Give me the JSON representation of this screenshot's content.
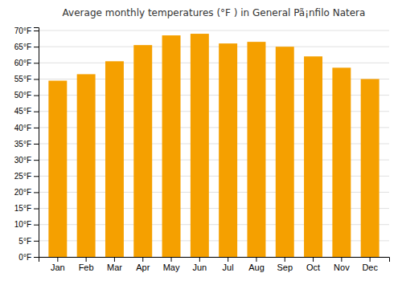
{
  "chart_data": {
    "type": "bar",
    "title": "Average monthly temperatures (°F ) in General Pã¡nfilo Natera",
    "categories": [
      "Jan",
      "Feb",
      "Mar",
      "Apr",
      "May",
      "Jun",
      "Jul",
      "Aug",
      "Sep",
      "Oct",
      "Nov",
      "Dec"
    ],
    "values": [
      54.5,
      56.5,
      60.5,
      65.5,
      68.5,
      69.0,
      66.0,
      66.5,
      65.0,
      62.0,
      58.5,
      55.0
    ],
    "color": "#F5A000",
    "ylim": [
      0,
      71
    ],
    "yticks": [
      {
        "value": 0,
        "label": "0°F"
      },
      {
        "value": 5,
        "label": "5°F"
      },
      {
        "value": 10,
        "label": "10°F"
      },
      {
        "value": 15,
        "label": "15°F"
      },
      {
        "value": 20,
        "label": "20°F"
      },
      {
        "value": 25,
        "label": "25°F"
      },
      {
        "value": 30,
        "label": "30°F"
      },
      {
        "value": 35,
        "label": "35°F"
      },
      {
        "value": 40,
        "label": "40°F"
      },
      {
        "value": 45,
        "label": "45°F"
      },
      {
        "value": 50,
        "label": "50°F"
      },
      {
        "value": 55,
        "label": "55°F"
      },
      {
        "value": 60,
        "label": "60°F"
      },
      {
        "value": 65,
        "label": "65°F"
      },
      {
        "value": 70,
        "label": "70°F"
      }
    ],
    "grid": true
  }
}
